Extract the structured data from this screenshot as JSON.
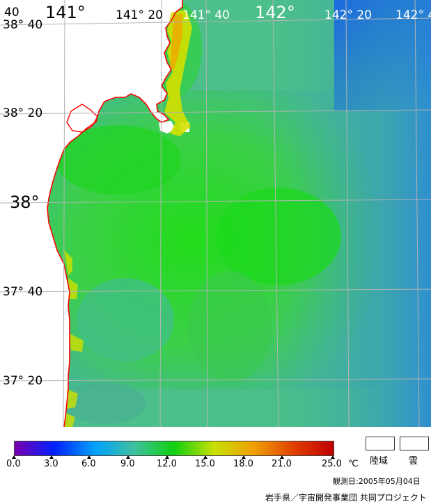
{
  "map": {
    "lon_top_labels": [
      "40",
      "141°",
      "141° 20",
      "141° 40",
      "142°",
      "142° 20",
      "142° 4"
    ],
    "lat_labels": [
      "38° 40",
      "38° 20",
      "38°",
      "37° 40",
      "37° 20"
    ],
    "colors": {
      "land": "#ffffff",
      "coast": "#ff0000",
      "grid": "#b4b4b4"
    }
  },
  "legend": {
    "ticks": [
      "0.0",
      "3.0",
      "6.0",
      "9.0",
      "12.0",
      "15.0",
      "18.0",
      "21.0",
      "25.0"
    ],
    "unit": "℃",
    "swatches": [
      {
        "label": "陸域",
        "color": "#ffffff"
      },
      {
        "label": "雲",
        "color": "#ffffff"
      }
    ],
    "gradient_colors": [
      "#7a00b0",
      "#0020ff",
      "#00a0ff",
      "#40c0a0",
      "#10d010",
      "#c8e000",
      "#f0a000",
      "#e04000",
      "#c00000"
    ]
  },
  "footer": {
    "observation_date": "観測日:2005年05月04日",
    "credit": "岩手県／宇宙開発事業団 共同プロジェクト"
  }
}
